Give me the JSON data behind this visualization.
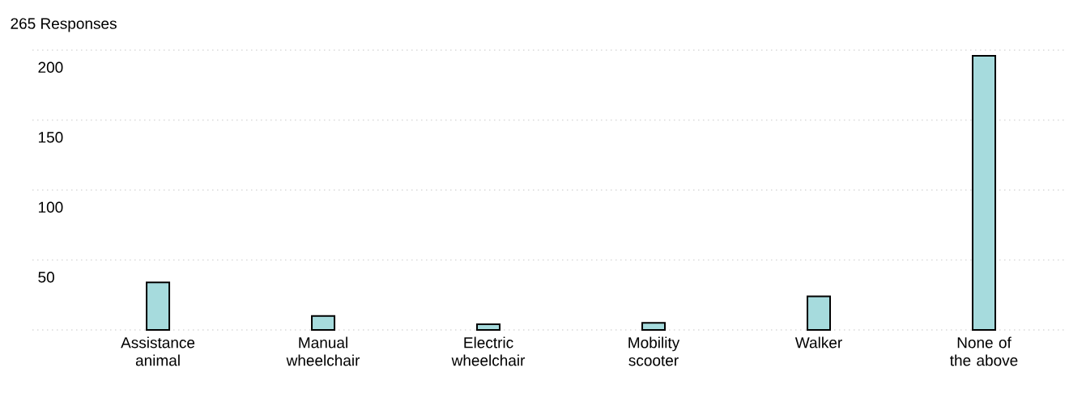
{
  "chart_data": {
    "type": "bar",
    "title": "265 Responses",
    "categories": [
      "Assistance animal",
      "Manual wheelchair",
      "Electric wheelchair",
      "Mobility scooter",
      "Walker",
      "None of the above"
    ],
    "values": [
      34,
      10,
      4,
      5,
      24,
      196
    ],
    "color": "#a6dbdd",
    "ylim": [
      0,
      200
    ],
    "yticks": [
      {
        "value": 0,
        "label": null
      },
      50,
      100,
      150,
      200
    ],
    "grid": "y"
  }
}
